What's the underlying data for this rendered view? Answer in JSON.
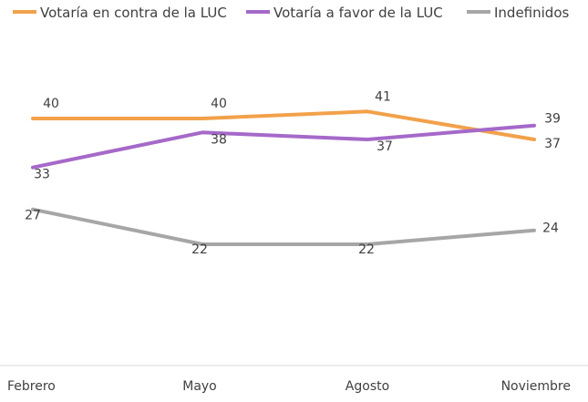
{
  "chart_data": {
    "type": "line",
    "title": "",
    "xlabel": "",
    "ylabel": "",
    "categories": [
      "Febrero",
      "Mayo",
      "Agosto",
      "Noviembre"
    ],
    "ylim": [
      0,
      50
    ],
    "grid": false,
    "legend_position": "top",
    "series": [
      {
        "name": "Votaría en contra de la LUC",
        "values": [
          40,
          40,
          41,
          37
        ],
        "color": "#F2A14A"
      },
      {
        "name": "Votaría a favor de la LUC",
        "values": [
          33,
          38,
          37,
          39
        ],
        "color": "#A569C9"
      },
      {
        "name": "Indefinidos",
        "values": [
          27,
          22,
          22,
          24
        ],
        "color": "#A6A6A6"
      }
    ]
  }
}
